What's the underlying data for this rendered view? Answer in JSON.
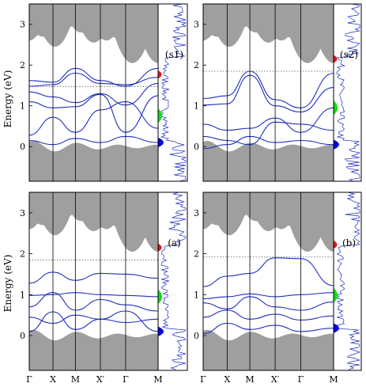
{
  "figure": {
    "ylabel": "Energy (eV)",
    "colors": {
      "bulk": "#9a9a9a",
      "bands": "#1f2fbf",
      "dos_line": "#1f2fbf",
      "dos_blue": "#0000e0",
      "dos_green": "#11dd11",
      "dos_red": "#ee1111",
      "fermi": "#555555"
    }
  },
  "chart_data": [
    {
      "id": "s1",
      "label": "(s1)",
      "type": "line",
      "xlabel": "",
      "xticks": [
        "Γ",
        "X",
        "M",
        "X′",
        "Γ",
        "M"
      ],
      "ylabel": "Energy (eV)",
      "ylim": [
        -0.85,
        3.5
      ],
      "yticks": [
        0,
        1,
        2,
        3
      ],
      "fermi_level": 1.47,
      "bulk_gap": [
        0.05,
        1.95
      ],
      "bands": [
        {
          "name": "",
          "x": [
            0,
            1,
            2,
            3,
            4,
            5
          ],
          "y": [
            1.62,
            1.58,
            1.92,
            1.62,
            1.48,
            1.92
          ]
        },
        {
          "name": "",
          "x": [
            0,
            1,
            2,
            3,
            4,
            5
          ],
          "y": [
            1.48,
            1.52,
            1.8,
            1.55,
            1.52,
            1.7
          ]
        },
        {
          "name": "",
          "x": [
            0,
            1,
            2,
            3,
            4,
            5
          ],
          "y": [
            1.34,
            1.22,
            1.08,
            1.3,
            1.02,
            1.55
          ]
        },
        {
          "name": "",
          "x": [
            0,
            1,
            2,
            3,
            4,
            5
          ],
          "y": [
            1.1,
            0.95,
            0.98,
            1.28,
            0.35,
            1.25
          ]
        },
        {
          "name": "",
          "x": [
            0,
            1,
            2,
            3,
            4,
            5
          ],
          "y": [
            0.28,
            0.72,
            0.35,
            0.9,
            1.1,
            0.45
          ]
        },
        {
          "name": "",
          "x": [
            0,
            1,
            2,
            3,
            4,
            5
          ],
          "y": [
            0.15,
            0.05,
            0.2,
            0.1,
            0.25,
            0.1
          ]
        }
      ]
    },
    {
      "id": "s2",
      "label": "(s2)",
      "type": "line",
      "xlabel": "",
      "xticks": [
        "Γ",
        "X",
        "M",
        "X′",
        "Γ",
        "M"
      ],
      "ylabel": "",
      "ylim": [
        -0.85,
        3.5
      ],
      "yticks": [
        0,
        1,
        2,
        3
      ],
      "fermi_level": 1.85,
      "bulk_gap": [
        0.05,
        1.95
      ],
      "bands": [
        {
          "name": "",
          "x": [
            0,
            1,
            2,
            3,
            4,
            5
          ],
          "y": [
            1.18,
            1.25,
            1.85,
            1.15,
            0.95,
            1.8
          ]
        },
        {
          "name": "",
          "x": [
            0,
            1,
            2,
            3,
            4,
            5
          ],
          "y": [
            1.02,
            1.05,
            1.75,
            1.0,
            0.85,
            1.45
          ]
        },
        {
          "name": "",
          "x": [
            0,
            1,
            2,
            3,
            4,
            5
          ],
          "y": [
            0.55,
            0.4,
            0.45,
            0.7,
            0.35,
            0.95
          ]
        },
        {
          "name": "",
          "x": [
            0,
            1,
            2,
            3,
            4,
            5
          ],
          "y": [
            0.25,
            0.15,
            0.05,
            0.6,
            0.55,
            0.4
          ]
        },
        {
          "name": "",
          "x": [
            0,
            1,
            2,
            3,
            4,
            5
          ],
          "y": [
            -0.05,
            0.05,
            0.25,
            0.1,
            0.15,
            0.05
          ]
        }
      ]
    },
    {
      "id": "a",
      "label": "(a)",
      "type": "line",
      "xlabel": "",
      "xticks": [
        "Γ",
        "X",
        "M",
        "X′",
        "Γ",
        "M"
      ],
      "ylabel": "Energy (eV)",
      "ylim": [
        -0.85,
        3.5
      ],
      "yticks": [
        0,
        1,
        2,
        3
      ],
      "fermi_level": 1.85,
      "bulk_gap": [
        0.05,
        1.95
      ],
      "bands": [
        {
          "name": "",
          "x": [
            0,
            1,
            2,
            3,
            4,
            5
          ],
          "y": [
            1.28,
            1.55,
            1.35,
            1.52,
            1.5,
            1.4
          ]
        },
        {
          "name": "",
          "x": [
            0,
            1,
            2,
            3,
            4,
            5
          ],
          "y": [
            0.98,
            1.0,
            1.05,
            1.0,
            0.98,
            0.95
          ]
        },
        {
          "name": "",
          "x": [
            0,
            1,
            2,
            3,
            4,
            5
          ],
          "y": [
            0.7,
            1.05,
            0.62,
            0.88,
            0.75,
            0.6
          ]
        },
        {
          "name": "",
          "x": [
            0,
            1,
            2,
            3,
            4,
            5
          ],
          "y": [
            0.45,
            0.3,
            0.5,
            0.4,
            0.32,
            0.4
          ]
        },
        {
          "name": "",
          "x": [
            0,
            1,
            2,
            3,
            4,
            5
          ],
          "y": [
            0.1,
            0.58,
            0.15,
            0.4,
            0.6,
            0.1
          ]
        }
      ]
    },
    {
      "id": "b",
      "label": "(b)",
      "type": "line",
      "xlabel": "",
      "xticks": [
        "Γ",
        "X",
        "M",
        "X′",
        "Γ",
        "M"
      ],
      "ylabel": "",
      "ylim": [
        -0.85,
        3.5
      ],
      "yticks": [
        0,
        1,
        2,
        3
      ],
      "fermi_level": 1.92,
      "bulk_gap": [
        0.05,
        1.95
      ],
      "bands": [
        {
          "name": "",
          "x": [
            0,
            1,
            2,
            3,
            4,
            5
          ],
          "y": [
            1.2,
            1.45,
            1.52,
            1.9,
            1.88,
            1.22
          ]
        },
        {
          "name": "",
          "x": [
            0,
            1,
            2,
            3,
            4,
            5
          ],
          "y": [
            0.9,
            0.95,
            1.02,
            0.95,
            1.0,
            1.05
          ]
        },
        {
          "name": "",
          "x": [
            0,
            1,
            2,
            3,
            4,
            5
          ],
          "y": [
            0.8,
            0.65,
            0.95,
            0.7,
            0.62,
            0.82
          ]
        },
        {
          "name": "",
          "x": [
            0,
            1,
            2,
            3,
            4,
            5
          ],
          "y": [
            0.45,
            0.62,
            0.4,
            0.52,
            0.38,
            0.48
          ]
        },
        {
          "name": "",
          "x": [
            0,
            1,
            2,
            3,
            4,
            5
          ],
          "y": [
            0.05,
            0.3,
            0.15,
            0.25,
            0.1,
            0.18
          ]
        }
      ]
    }
  ]
}
